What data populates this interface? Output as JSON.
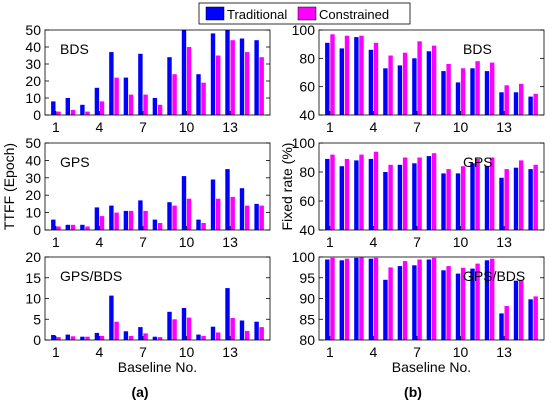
{
  "legend": {
    "entries": [
      {
        "label": "Traditional",
        "color": "#0000ff"
      },
      {
        "label": "Constrained",
        "color": "#ff00ff"
      }
    ],
    "placement": "top-center"
  },
  "figure_labels": {
    "a": "(a)",
    "b": "(b)"
  },
  "chart_data": [
    {
      "type": "bar",
      "panel": "a",
      "title": "BDS",
      "ylabel": "",
      "xlabel": "",
      "categories": [
        1,
        2,
        3,
        4,
        5,
        6,
        7,
        8,
        9,
        10,
        11,
        12,
        13,
        14,
        15
      ],
      "xticks": [
        "1",
        "4",
        "7",
        "10",
        "13"
      ],
      "ylim": [
        0,
        50
      ],
      "yticks": [
        0,
        10,
        20,
        30,
        40,
        50
      ],
      "grid": false,
      "series": [
        {
          "name": "Traditional",
          "values": [
            8,
            10,
            6,
            16,
            37,
            22,
            36,
            10,
            34,
            50,
            24,
            48,
            50,
            45,
            44
          ]
        },
        {
          "name": "Constrained",
          "values": [
            2,
            3,
            2,
            8,
            22,
            12,
            12,
            6,
            24,
            40,
            19,
            35,
            44,
            37,
            34
          ]
        }
      ]
    },
    {
      "type": "bar",
      "panel": "a",
      "title": "GPS",
      "ylabel": "TTFF (Epoch)",
      "xlabel": "",
      "categories": [
        1,
        2,
        3,
        4,
        5,
        6,
        7,
        8,
        9,
        10,
        11,
        12,
        13,
        14,
        15
      ],
      "xticks": [
        "1",
        "4",
        "7",
        "10",
        "13"
      ],
      "ylim": [
        0,
        50
      ],
      "yticks": [
        0,
        10,
        20,
        30,
        40,
        50
      ],
      "grid": false,
      "series": [
        {
          "name": "Traditional",
          "values": [
            6,
            3,
            3,
            13,
            14,
            11,
            17,
            6,
            16,
            31,
            6,
            29,
            35,
            24,
            15
          ]
        },
        {
          "name": "Constrained",
          "values": [
            2,
            3,
            2,
            8,
            10,
            11,
            11,
            4,
            14,
            18,
            4,
            18,
            19,
            14,
            14
          ]
        }
      ]
    },
    {
      "type": "bar",
      "panel": "a",
      "title": "GPS/BDS",
      "ylabel": "",
      "xlabel": "Baseline No.",
      "categories": [
        1,
        2,
        3,
        4,
        5,
        6,
        7,
        8,
        9,
        10,
        11,
        12,
        13,
        14,
        15
      ],
      "xticks": [
        "1",
        "4",
        "7",
        "10",
        "13"
      ],
      "ylim": [
        0,
        20
      ],
      "yticks": [
        0,
        5,
        10,
        15,
        20
      ],
      "grid": false,
      "series": [
        {
          "name": "Traditional",
          "values": [
            1.2,
            1.3,
            0.8,
            1.7,
            10.7,
            2.1,
            3.1,
            0.8,
            6.8,
            7.7,
            1.3,
            3.2,
            12.5,
            4.7,
            4.4
          ]
        },
        {
          "name": "Constrained",
          "values": [
            0.7,
            0.9,
            0.8,
            1.0,
            4.4,
            1.0,
            1.6,
            0.7,
            5.0,
            5.4,
            1.0,
            1.8,
            5.3,
            2.2,
            3.1
          ]
        }
      ]
    },
    {
      "type": "bar",
      "panel": "b",
      "title": "BDS",
      "ylabel": "",
      "xlabel": "",
      "categories": [
        1,
        2,
        3,
        4,
        5,
        6,
        7,
        8,
        9,
        10,
        11,
        12,
        13,
        14,
        15
      ],
      "xticks": [
        "1",
        "4",
        "7",
        "10",
        "13"
      ],
      "ylim": [
        40,
        100
      ],
      "yticks": [
        40,
        60,
        80,
        100
      ],
      "grid": false,
      "series": [
        {
          "name": "Traditional",
          "values": [
            91,
            87,
            95,
            86,
            73,
            75,
            80,
            85,
            71,
            63,
            73,
            71,
            56,
            56,
            53
          ]
        },
        {
          "name": "Constrained",
          "values": [
            97,
            96,
            96,
            91,
            82,
            84,
            92,
            89,
            76,
            73,
            78,
            77,
            61,
            62,
            55
          ]
        }
      ]
    },
    {
      "type": "bar",
      "panel": "b",
      "title": "GPS",
      "ylabel": "Fixed rate (%)",
      "xlabel": "",
      "categories": [
        1,
        2,
        3,
        4,
        5,
        6,
        7,
        8,
        9,
        10,
        11,
        12,
        13,
        14,
        15
      ],
      "xticks": [
        "1",
        "4",
        "7",
        "10",
        "13"
      ],
      "ylim": [
        40,
        100
      ],
      "yticks": [
        40,
        60,
        80,
        100
      ],
      "grid": false,
      "series": [
        {
          "name": "Traditional",
          "values": [
            89,
            84,
            88,
            89,
            80,
            85,
            86,
            91,
            79,
            79,
            86,
            84,
            76,
            83,
            82
          ]
        },
        {
          "name": "Constrained",
          "values": [
            92,
            89,
            92,
            94,
            85,
            90,
            90,
            93,
            82,
            84,
            89,
            90,
            82,
            88,
            85
          ]
        }
      ]
    },
    {
      "type": "bar",
      "panel": "b",
      "title": "GPS/BDS",
      "ylabel": "",
      "xlabel": "Baseline No.",
      "categories": [
        1,
        2,
        3,
        4,
        5,
        6,
        7,
        8,
        9,
        10,
        11,
        12,
        13,
        14,
        15
      ],
      "xticks": [
        "1",
        "4",
        "7",
        "10",
        "13"
      ],
      "ylim": [
        80,
        100
      ],
      "yticks": [
        80,
        85,
        90,
        95,
        100
      ],
      "grid": false,
      "series": [
        {
          "name": "Traditional",
          "values": [
            99.4,
            99.2,
            99.8,
            99.6,
            94.5,
            97.8,
            98.0,
            99.4,
            96.8,
            96.0,
            97.2,
            99.2,
            86.4,
            94.3,
            89.8
          ]
        },
        {
          "name": "Constrained",
          "values": [
            99.8,
            99.6,
            99.9,
            99.8,
            97.5,
            99.0,
            99.4,
            99.8,
            97.8,
            97.4,
            98.4,
            99.6,
            88.2,
            94.5,
            90.5
          ]
        }
      ]
    }
  ]
}
